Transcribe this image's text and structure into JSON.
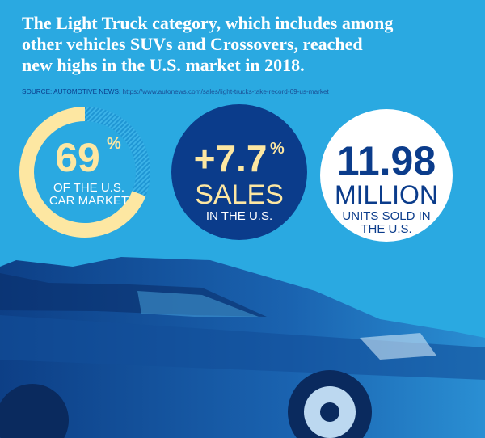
{
  "header": {
    "title_lines": [
      "The Light Truck category, which includes among",
      "other vehicles SUVs and Crossovers, reached",
      "new highs in the U.S. market in 2018."
    ],
    "source_label": "SOURCE: AUTOMOTIVE NEWS:",
    "source_url": "https://www.autonews.com/sales/light-trucks-take-record-69-us-market"
  },
  "stats": [
    {
      "value": 69,
      "unit": "%",
      "caption_lines": [
        "OF THE U.S.",
        "CAR MARKET"
      ]
    },
    {
      "value": "+7.7",
      "unit": "%",
      "label": "SALES",
      "caption_lines": [
        "IN THE U.S."
      ]
    },
    {
      "value": "11.98",
      "label": "MILLION",
      "caption_lines": [
        "UNITS SOLD IN",
        "THE U.S."
      ]
    }
  ]
}
